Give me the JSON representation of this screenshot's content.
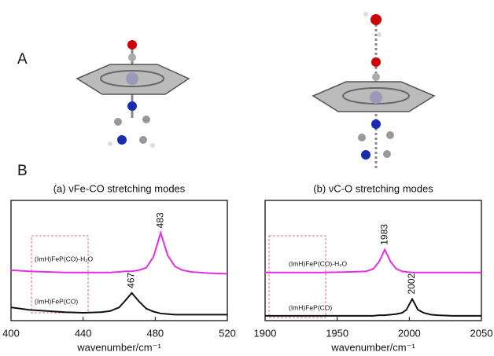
{
  "panel_labels": [
    "A",
    "B"
  ],
  "chart_data": [
    {
      "type": "line",
      "title": "(a) νFe-CO stretching modes",
      "xlabel": "wavenumber/cm⁻¹",
      "xlim": [
        400,
        520
      ],
      "xticks": [
        400,
        440,
        480,
        520
      ],
      "ylim": [
        0,
        1
      ],
      "x": [
        400,
        410,
        420,
        430,
        440,
        450,
        455,
        460,
        463,
        467,
        471,
        475,
        479,
        483,
        487,
        491,
        495,
        500,
        510,
        520
      ],
      "series": [
        {
          "name": "(ImH)FeP(CO)-H₂O",
          "color": "#e62ee6",
          "values": [
            0.42,
            0.41,
            0.405,
            0.4,
            0.4,
            0.4,
            0.4,
            0.405,
            0.41,
            0.41,
            0.42,
            0.44,
            0.53,
            0.73,
            0.54,
            0.45,
            0.42,
            0.405,
            0.395,
            0.39
          ]
        },
        {
          "name": "(ImH)FeP(CO)",
          "color": "#111111",
          "values": [
            0.11,
            0.09,
            0.08,
            0.07,
            0.065,
            0.07,
            0.08,
            0.11,
            0.16,
            0.23,
            0.16,
            0.1,
            0.075,
            0.06,
            0.055,
            0.05,
            0.05,
            0.05,
            0.05,
            0.05
          ]
        }
      ],
      "peak_labels": [
        483,
        467
      ]
    },
    {
      "type": "line",
      "title": "(b) νC-O stretching modes",
      "xlabel": "wavenumber/cm⁻¹",
      "xlim": [
        1900,
        2050
      ],
      "xticks": [
        1900,
        1950,
        2000,
        2050
      ],
      "ylim": [
        0,
        1
      ],
      "x": [
        1900,
        1920,
        1940,
        1960,
        1970,
        1975,
        1979,
        1983,
        1987,
        1991,
        1995,
        1998,
        2002,
        2006,
        2010,
        2015,
        2020,
        2030,
        2040,
        2050
      ],
      "series": [
        {
          "name": "(ImH)FeP(CO)-H₂O",
          "color": "#e62ee6",
          "values": [
            0.4,
            0.4,
            0.4,
            0.405,
            0.41,
            0.43,
            0.49,
            0.59,
            0.49,
            0.43,
            0.41,
            0.405,
            0.4,
            0.4,
            0.4,
            0.4,
            0.4,
            0.4,
            0.4,
            0.4
          ]
        },
        {
          "name": "(ImH)FeP(CO)",
          "color": "#111111",
          "values": [
            0.04,
            0.04,
            0.04,
            0.04,
            0.04,
            0.04,
            0.045,
            0.045,
            0.05,
            0.055,
            0.065,
            0.09,
            0.18,
            0.09,
            0.065,
            0.05,
            0.045,
            0.04,
            0.04,
            0.04
          ]
        }
      ],
      "peak_labels": [
        1983,
        2002
      ]
    }
  ]
}
